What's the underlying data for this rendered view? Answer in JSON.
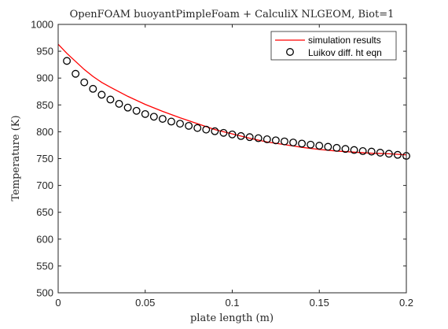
{
  "chart_data": {
    "type": "line",
    "title": "OpenFOAM buoyantPimpleFoam + CalculiX NLGEOM, Biot=1",
    "xlabel": "plate length (m)",
    "ylabel": "Temperature (K)",
    "xlim": [
      0,
      0.2
    ],
    "ylim": [
      500,
      1000
    ],
    "xticks": [
      0,
      0.05,
      0.1,
      0.15,
      0.2
    ],
    "xtick_labels": [
      "0",
      "0.05",
      "0.1",
      "0.15",
      "0.2"
    ],
    "yticks": [
      500,
      550,
      600,
      650,
      700,
      750,
      800,
      850,
      900,
      950,
      1000
    ],
    "ytick_labels": [
      "500",
      "550",
      "600",
      "650",
      "700",
      "750",
      "800",
      "850",
      "900",
      "950",
      "1000"
    ],
    "grid": false,
    "legend_position": "top-right",
    "series": [
      {
        "name": "simulation results",
        "style": "line",
        "color": "#ff0000",
        "x": [
          0,
          0.005,
          0.01,
          0.015,
          0.02,
          0.025,
          0.03,
          0.04,
          0.05,
          0.06,
          0.07,
          0.08,
          0.09,
          0.1,
          0.11,
          0.12,
          0.13,
          0.14,
          0.15,
          0.16,
          0.17,
          0.18,
          0.19,
          0.2
        ],
        "y": [
          963,
          946,
          931,
          916,
          903,
          892,
          883,
          866,
          851,
          838,
          826,
          815,
          804,
          796,
          788,
          781,
          776,
          771,
          767,
          764,
          762,
          760,
          759,
          757
        ]
      },
      {
        "name": "Luikov diff. ht eqn",
        "style": "markers",
        "color": "#000000",
        "marker": "circle-open",
        "x": [
          0.005,
          0.01,
          0.015,
          0.02,
          0.025,
          0.03,
          0.035,
          0.04,
          0.045,
          0.05,
          0.055,
          0.06,
          0.065,
          0.07,
          0.075,
          0.08,
          0.085,
          0.09,
          0.095,
          0.1,
          0.105,
          0.11,
          0.115,
          0.12,
          0.125,
          0.13,
          0.135,
          0.14,
          0.145,
          0.15,
          0.155,
          0.16,
          0.165,
          0.17,
          0.175,
          0.18,
          0.185,
          0.19,
          0.195,
          0.2
        ],
        "y": [
          932,
          908,
          892,
          880,
          869,
          860,
          852,
          845,
          839,
          833,
          828,
          824,
          819,
          815,
          811,
          807,
          804,
          801,
          798,
          795,
          792,
          790,
          788,
          786,
          784,
          782,
          780,
          778,
          776,
          774,
          772,
          770,
          768,
          766,
          764,
          763,
          761,
          759,
          757,
          755
        ]
      }
    ]
  }
}
